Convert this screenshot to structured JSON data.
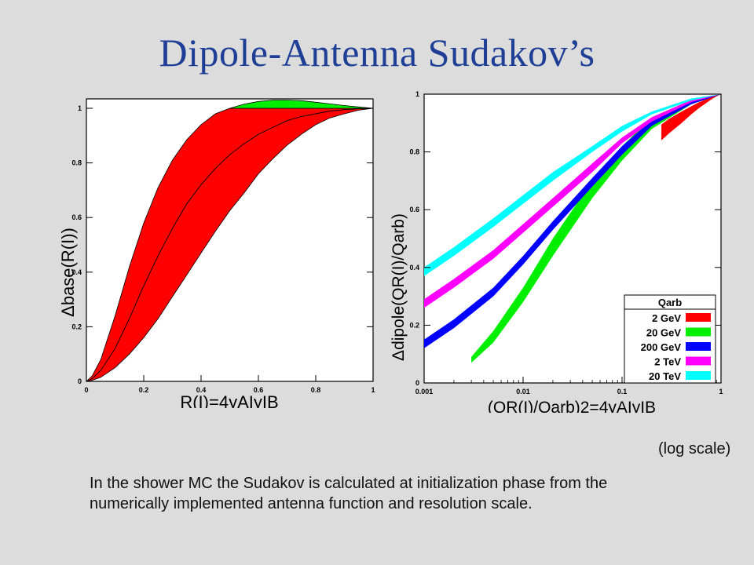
{
  "title": "Dipole-Antenna Sudakov’s",
  "log_scale_note": "(log scale)",
  "caption": "In the shower MC the Sudakov is calculated at initialization phase from the numerically implemented antenna function and resolution scale.",
  "chart_data": [
    {
      "type": "area",
      "xlabel": "R(I)=4yAIyIB",
      "ylabel": "Δbase(R(I))",
      "xlim": [
        0,
        1
      ],
      "ylim": [
        0,
        1
      ],
      "xticks": [
        "0",
        "0.2",
        "0.4",
        "0.6",
        "0.8",
        "1"
      ],
      "yticks": [
        "0",
        "0.2",
        "0.4",
        "0.6",
        "0.8",
        "1"
      ],
      "series": [
        {
          "color": "#ff0000",
          "x": [
            0,
            0.02,
            0.05,
            0.1,
            0.15,
            0.2,
            0.25,
            0.3,
            0.35,
            0.4,
            0.45,
            0.5,
            0.55,
            0.6,
            0.65,
            0.7,
            0.75,
            0.8,
            0.85,
            0.9,
            0.95,
            1.0
          ],
          "upper": [
            0,
            0.02,
            0.08,
            0.24,
            0.42,
            0.58,
            0.71,
            0.81,
            0.885,
            0.94,
            0.98,
            1.0,
            1.0,
            1.0,
            1.0,
            1.0,
            1.0,
            1.0,
            1.0,
            1.0,
            1.0,
            1.0
          ],
          "lower": [
            0,
            0.004,
            0.015,
            0.05,
            0.1,
            0.16,
            0.23,
            0.31,
            0.39,
            0.47,
            0.55,
            0.625,
            0.69,
            0.76,
            0.815,
            0.865,
            0.905,
            0.94,
            0.965,
            0.98,
            0.993,
            1.0
          ],
          "center": [
            0,
            0.01,
            0.04,
            0.12,
            0.23,
            0.35,
            0.46,
            0.56,
            0.65,
            0.72,
            0.78,
            0.83,
            0.87,
            0.905,
            0.93,
            0.955,
            0.97,
            0.98,
            0.99,
            0.995,
            0.998,
            1.0
          ]
        },
        {
          "color": "#00ee00",
          "x": [
            0.5,
            0.55,
            0.6,
            0.65,
            0.7,
            0.75,
            0.8,
            0.85,
            0.9,
            0.95,
            1.0
          ],
          "upper": [
            1.0,
            1.015,
            1.025,
            1.03,
            1.03,
            1.028,
            1.022,
            1.016,
            1.01,
            1.005,
            1.0
          ],
          "lower": [
            1.0,
            1.0,
            1.0,
            1.0,
            1.0,
            1.0,
            1.0,
            1.0,
            1.0,
            1.0,
            1.0
          ]
        }
      ]
    },
    {
      "type": "area",
      "log_x": true,
      "xlabel": "(QR(I)/Qarb)2=4yAIyIB",
      "ylabel": "Δdipole(QR(I)/Qarb)",
      "xlim": [
        0.001,
        1
      ],
      "ylim": [
        0,
        1
      ],
      "xticks": [
        "0.001",
        "0.01",
        "0.1",
        "1"
      ],
      "yticks": [
        "0",
        "0.2",
        "0.4",
        "0.6",
        "0.8",
        "1"
      ],
      "legend": {
        "title": "Qarb",
        "position": "lower-right",
        "entries": [
          "2 GeV",
          "20 GeV",
          "200 GeV",
          "2 TeV",
          "20 TeV"
        ]
      },
      "series": [
        {
          "name": "2 GeV",
          "color": "#ff0000",
          "x": [
            0.25,
            0.3,
            0.4,
            0.5,
            0.6,
            0.7,
            0.8,
            0.9,
            1.0
          ],
          "upper": [
            0.895,
            0.915,
            0.94,
            0.958,
            0.972,
            0.982,
            0.99,
            0.996,
            1.0
          ],
          "lower": [
            0.84,
            0.865,
            0.9,
            0.93,
            0.952,
            0.968,
            0.982,
            0.992,
            1.0
          ]
        },
        {
          "name": "20 GeV",
          "color": "#00ee00",
          "x": [
            0.003,
            0.005,
            0.01,
            0.02,
            0.05,
            0.1,
            0.2,
            0.5,
            1.0
          ],
          "upper": [
            0.09,
            0.18,
            0.33,
            0.5,
            0.7,
            0.82,
            0.92,
            0.98,
            1.0
          ],
          "lower": [
            0.07,
            0.14,
            0.28,
            0.44,
            0.64,
            0.77,
            0.88,
            0.965,
            1.0
          ]
        },
        {
          "name": "200 GeV",
          "color": "#0000ff",
          "x": [
            0.001,
            0.002,
            0.005,
            0.01,
            0.02,
            0.05,
            0.1,
            0.2,
            0.5,
            1.0
          ],
          "upper": [
            0.15,
            0.22,
            0.33,
            0.44,
            0.56,
            0.71,
            0.82,
            0.91,
            0.975,
            1.0
          ],
          "lower": [
            0.12,
            0.19,
            0.3,
            0.41,
            0.53,
            0.68,
            0.79,
            0.89,
            0.965,
            1.0
          ]
        },
        {
          "name": "2 TeV",
          "color": "#ff00ff",
          "x": [
            0.001,
            0.002,
            0.005,
            0.01,
            0.02,
            0.05,
            0.1,
            0.2,
            0.5,
            1.0
          ],
          "upper": [
            0.29,
            0.36,
            0.46,
            0.55,
            0.64,
            0.76,
            0.85,
            0.92,
            0.98,
            1.0
          ],
          "lower": [
            0.26,
            0.33,
            0.43,
            0.52,
            0.61,
            0.73,
            0.83,
            0.905,
            0.972,
            1.0
          ]
        },
        {
          "name": "20 TeV",
          "color": "#00ffff",
          "x": [
            0.001,
            0.002,
            0.005,
            0.01,
            0.02,
            0.05,
            0.1,
            0.2,
            0.5,
            1.0
          ],
          "upper": [
            0.4,
            0.47,
            0.57,
            0.65,
            0.73,
            0.82,
            0.89,
            0.94,
            0.985,
            1.0
          ],
          "lower": [
            0.37,
            0.44,
            0.54,
            0.62,
            0.7,
            0.8,
            0.87,
            0.93,
            0.978,
            1.0
          ]
        }
      ]
    }
  ]
}
